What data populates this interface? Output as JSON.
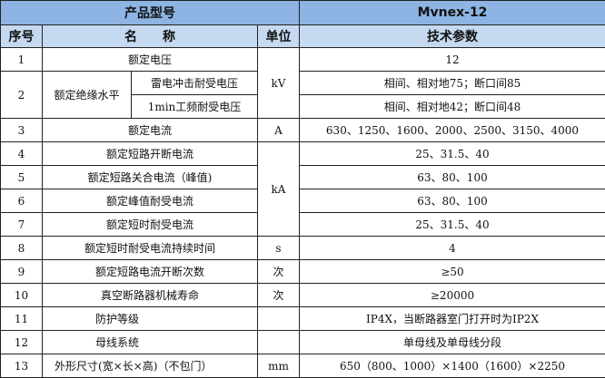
{
  "header": {
    "product_model_label": "产品型号",
    "product_model_value": "Mvnex-12"
  },
  "columns": {
    "no": "序号",
    "name": "名　　称",
    "unit": "单位",
    "params": "技术参数"
  },
  "rows": [
    {
      "no": "1",
      "name": "额定电压",
      "unit": "kV",
      "value": "12"
    },
    {
      "no": "2",
      "name": "额定绝缘水平",
      "sub": [
        {
          "name": "雷电冲击耐受电压",
          "value": "相间、相对地75；断口间85"
        },
        {
          "name": "1min工频耐受电压",
          "value": "相间、相对地42；断口间48"
        }
      ]
    },
    {
      "no": "3",
      "name": "额定电流",
      "unit": "A",
      "value": "630、1250、1600、2000、2500、3150、4000"
    },
    {
      "no": "4",
      "name": "额定短路开断电流",
      "unit": "kA",
      "value": "25、31.5、40"
    },
    {
      "no": "5",
      "name": "额定短路关合电流（峰值)",
      "value": "63、80、100"
    },
    {
      "no": "6",
      "name": "额定峰值耐受电流",
      "value": "63、80、100"
    },
    {
      "no": "7",
      "name": "额定短时耐受电流",
      "value": "25、31.5、40"
    },
    {
      "no": "8",
      "name": "额定短时耐受电流持续时间",
      "unit": "s",
      "value": "4"
    },
    {
      "no": "9",
      "name": "额定短路电流开断次数",
      "unit": "次",
      "value": "≥50"
    },
    {
      "no": "10",
      "name": "真空断路器机械寿命",
      "unit": "次",
      "value": "≥20000"
    },
    {
      "no": "11",
      "name": "防护等级",
      "unit": "",
      "value": "IP4X，当断路器室门打开时为IP2X"
    },
    {
      "no": "12",
      "name": "母线系统",
      "unit": "",
      "value": "单母线及单母线分段"
    },
    {
      "no": "13",
      "name": "外形尺寸(宽×长×高)（不包门）",
      "unit": "mm",
      "value": "650（800、1000）×1400（1600）×2250"
    }
  ]
}
